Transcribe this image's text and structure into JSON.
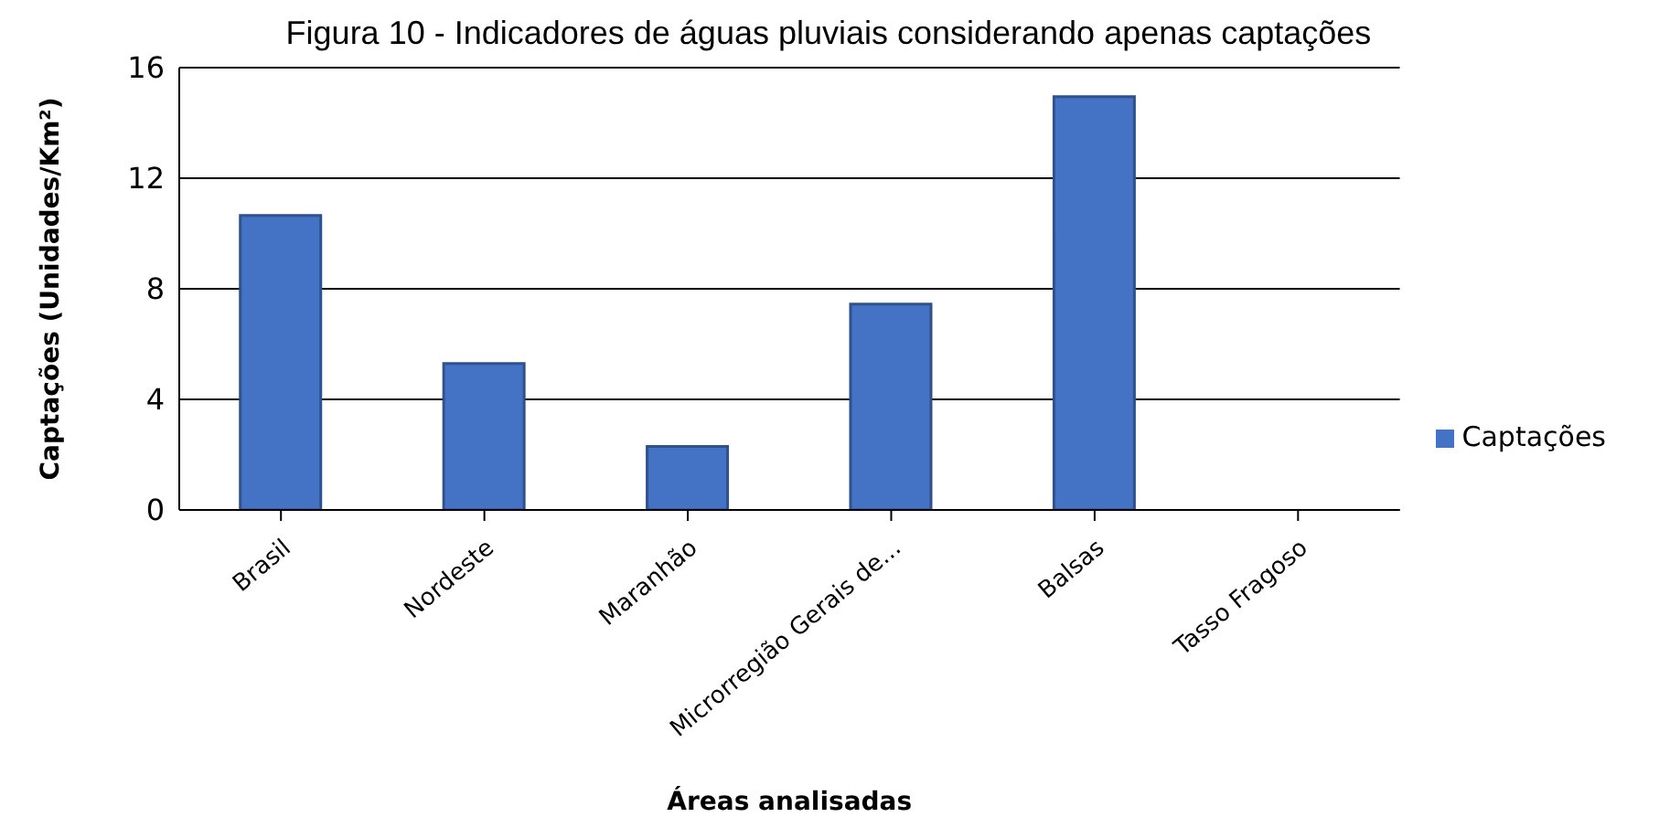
{
  "chart_data": {
    "type": "bar",
    "title": "Figura 10 - Indicadores de águas pluviais considerando apenas captações",
    "xlabel": "Áreas analisadas",
    "ylabel": "Captações (Unidades/Km²)",
    "categories": [
      "Brasil",
      "Nordeste",
      "Maranhão",
      "Microrregião Gerais de...",
      "Balsas",
      "Tasso Fragoso"
    ],
    "series": [
      {
        "name": "Captações",
        "color": "#4472c4",
        "values": [
          10.65,
          5.3,
          2.3,
          7.45,
          14.95,
          0
        ]
      }
    ],
    "ylim": [
      0,
      16
    ],
    "yticks": [
      0,
      4,
      8,
      12,
      16
    ],
    "grid": "y",
    "legend": "right"
  }
}
